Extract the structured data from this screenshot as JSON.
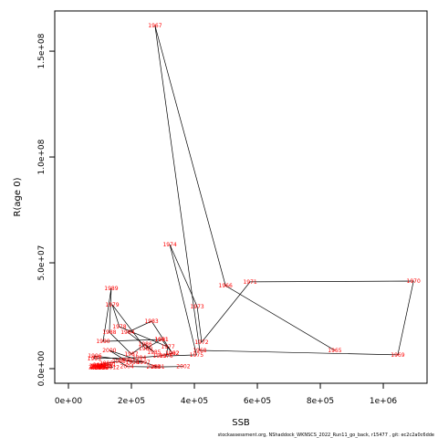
{
  "chart_data": {
    "type": "line",
    "x_label": "SSB",
    "y_label": "R(age 0)",
    "footer": "stockassessment.org, NShaddock_WKNSCS_2022_Run11_go_back, r15477 , git: ec2c2a0c6dde",
    "line_color": "#000000",
    "label_color": "#ff0000",
    "labels": [
      "1965",
      "1966",
      "1967",
      "1968",
      "1969",
      "1970",
      "1971",
      "1972",
      "1973",
      "1974",
      "1975",
      "1976",
      "1977",
      "1978",
      "1979",
      "1980",
      "1981",
      "1982",
      "1983",
      "1984",
      "1985",
      "1986",
      "1987",
      "1988",
      "1989",
      "1990",
      "1991",
      "1992",
      "1993",
      "1994",
      "1995",
      "1996",
      "1997",
      "1998",
      "1999",
      "2000",
      "2001",
      "2002",
      "2003",
      "2004",
      "2005",
      "2006",
      "2007",
      "2008",
      "2009",
      "2010",
      "2011",
      "2012",
      "2013",
      "2014",
      "2015",
      "2016",
      "2017",
      "2018",
      "2019",
      "2020",
      "2021"
    ],
    "x": [
      846000,
      499000,
      275000,
      417000,
      1046000,
      1096000,
      577000,
      423000,
      409000,
      322000,
      407000,
      310000,
      316000,
      162000,
      139000,
      245000,
      296000,
      330000,
      264000,
      188000,
      272000,
      244000,
      200000,
      130000,
      136000,
      110000,
      296000,
      330000,
      290000,
      225000,
      82000,
      84000,
      238000,
      203000,
      180000,
      130000,
      284000,
      365000,
      270000,
      186000,
      160000,
      120000,
      100000,
      95000,
      90000,
      110000,
      130000,
      140000,
      100000,
      92000,
      88000,
      105000,
      120000,
      98000,
      86000,
      94000,
      102000
    ],
    "y": [
      8600000,
      39200000,
      162000000,
      8600000,
      6500000,
      41400000,
      41000000,
      12500000,
      29300000,
      58600000,
      6500000,
      6000000,
      10300000,
      19800000,
      30200000,
      9500000,
      13800000,
      7300000,
      22400000,
      17200000,
      7800000,
      11600000,
      6900000,
      17200000,
      37900000,
      12900000,
      13800000,
      7300000,
      6000000,
      5200000,
      4800000,
      6000000,
      3000000,
      3000000,
      4000000,
      8600000,
      800000,
      1000000,
      800000,
      1000000,
      3500000,
      2500000,
      1800000,
      1200000,
      900000,
      1500000,
      2000000,
      700000,
      600000,
      1000000,
      1300000,
      500000,
      900000,
      1100000,
      600000,
      400000,
      700000
    ],
    "xlim": [
      -43500,
      1139000
    ],
    "ylim": [
      -6900000,
      169000000
    ],
    "xticks": [
      {
        "value": 0,
        "label": "0e+00"
      },
      {
        "value": 200000,
        "label": "2e+05"
      },
      {
        "value": 400000,
        "label": "4e+05"
      },
      {
        "value": 600000,
        "label": "6e+05"
      },
      {
        "value": 800000,
        "label": "8e+05"
      },
      {
        "value": 1000000,
        "label": "1e+06"
      }
    ],
    "yticks": [
      {
        "value": 0,
        "label": "0.0e+00"
      },
      {
        "value": 50000000,
        "label": "5.0e+07"
      },
      {
        "value": 100000000,
        "label": "1.0e+08"
      },
      {
        "value": 150000000,
        "label": "1.5e+08"
      }
    ]
  }
}
